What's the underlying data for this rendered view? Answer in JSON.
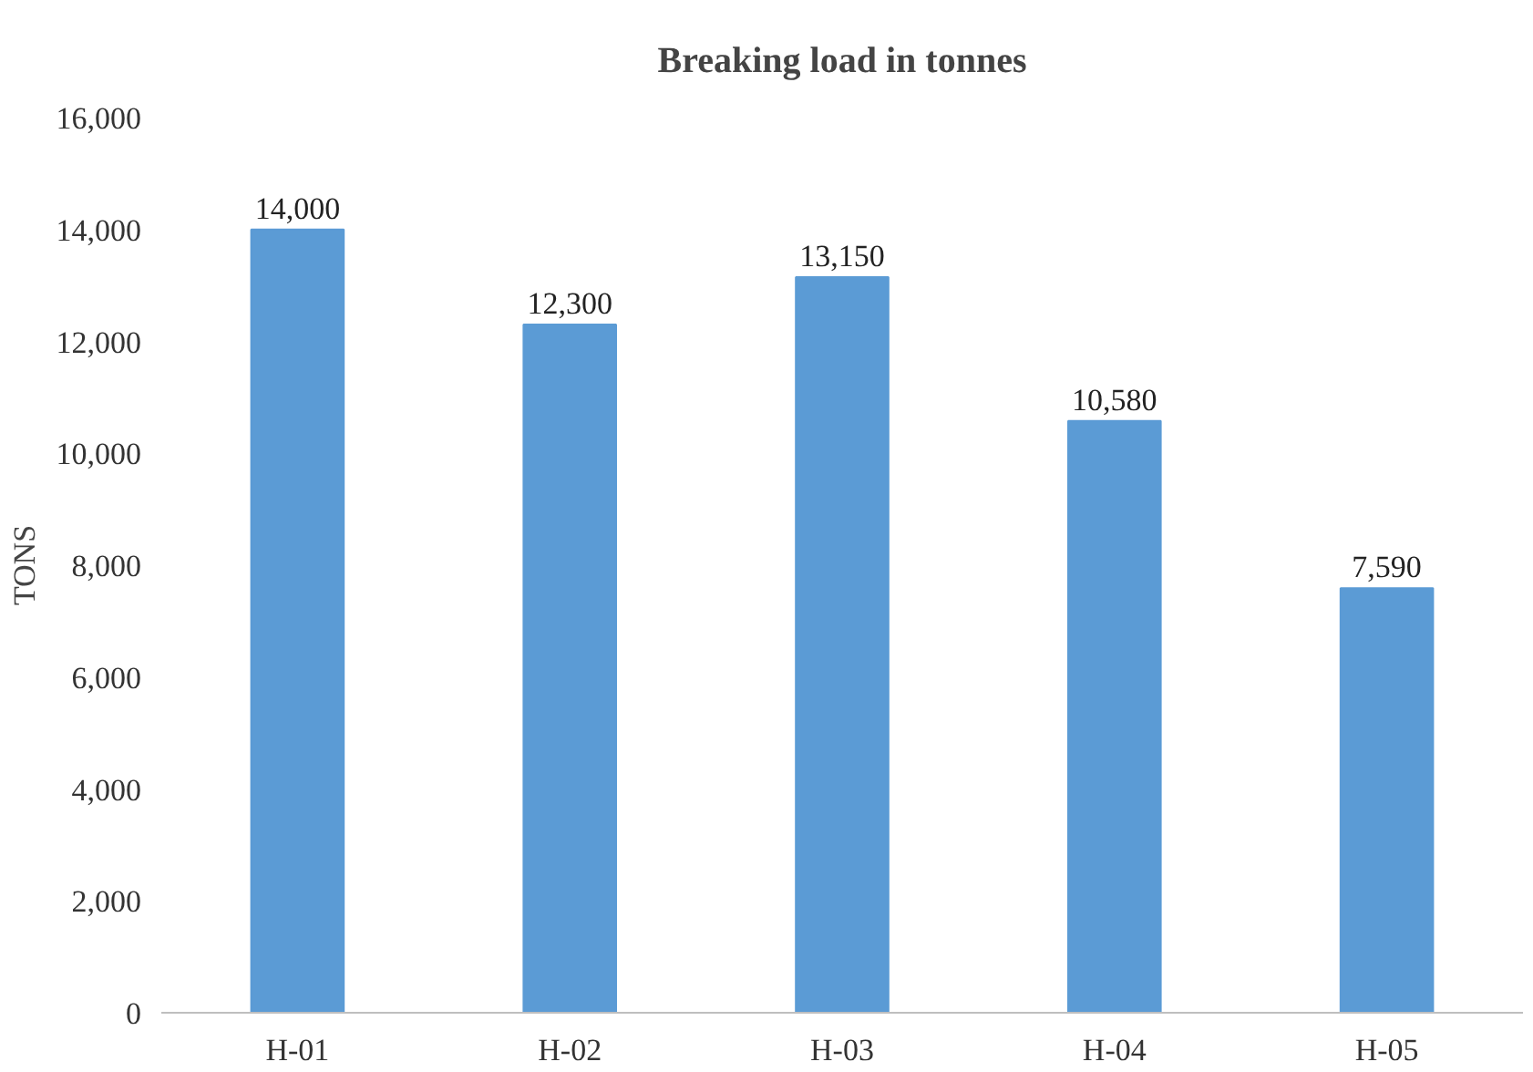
{
  "chart_data": {
    "type": "bar",
    "title": "Breaking load in tonnes",
    "ylabel": "TONS",
    "categories": [
      "H-01",
      "H-02",
      "H-03",
      "H-04",
      "H-05"
    ],
    "values": [
      14000,
      12300,
      13150,
      10580,
      7590
    ],
    "color": "#5b9bd5",
    "ylim": [
      0,
      16000
    ],
    "yticks": [
      {
        "value": 0,
        "label": "0"
      },
      {
        "value": 2000,
        "label": "2,000"
      },
      {
        "value": 4000,
        "label": "4,000"
      },
      {
        "value": 6000,
        "label": "6,000"
      },
      {
        "value": 8000,
        "label": "8,000"
      },
      {
        "value": 10000,
        "label": "10,000"
      },
      {
        "value": 12000,
        "label": "12,000"
      },
      {
        "value": 14000,
        "label": "14,000"
      },
      {
        "value": 16000,
        "label": "16,000"
      }
    ],
    "value_labels": [
      "14,000",
      "12,300",
      "13,150",
      "10,580",
      "7,590"
    ],
    "grid": false
  }
}
